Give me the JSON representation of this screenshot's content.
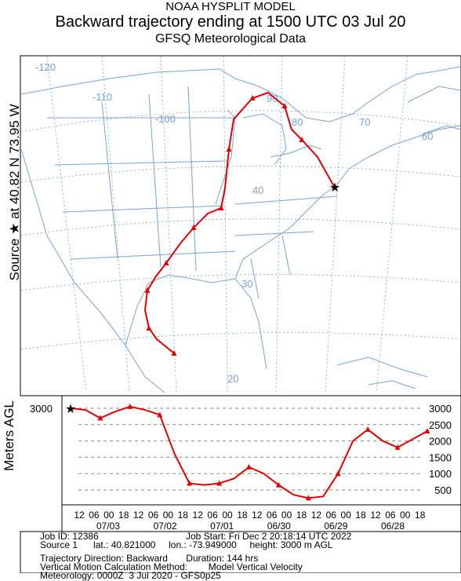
{
  "header": {
    "line1": "NOAA HYSPLIT MODEL",
    "line2": "Backward trajectory ending at 1500 UTC 03 Jul 20",
    "line3": "GFSQ Meteorological Data"
  },
  "side_labels": {
    "source": "Source ★  at    40.82 N    73.95 W",
    "height_axis": "Meters AGL"
  },
  "map": {
    "longitude_labels": [
      "-120",
      "-110",
      "-100",
      "90",
      "80",
      "70",
      "60"
    ],
    "latitude_labels": [
      "40",
      "30",
      "20"
    ],
    "colors": {
      "trajectory": "#e60000",
      "boundaries": "#7aa2d2",
      "grid": "#7aa2d2"
    }
  },
  "chart_data": {
    "type": "line",
    "ylabel": "Meters AGL",
    "ylim": [
      0,
      3500
    ],
    "height_ticks": [
      "500",
      "1000",
      "1500",
      "2000",
      "2500",
      "3000"
    ],
    "left_tick": "3000",
    "hour_ticks": [
      "12",
      "06",
      "00",
      "18",
      "12",
      "06",
      "00",
      "18",
      "12",
      "06",
      "00",
      "18",
      "12",
      "06",
      "00",
      "18",
      "12",
      "06",
      "00",
      "18",
      "12",
      "06",
      "00",
      "18"
    ],
    "date_labels": [
      "07/03",
      "07/02",
      "07/01",
      "06/30",
      "06/29",
      "06/28"
    ],
    "series": [
      {
        "hours_back": [
          0,
          6,
          12,
          18,
          24,
          30,
          36,
          42,
          48,
          54,
          60,
          66,
          72,
          78,
          84,
          90,
          96,
          102,
          108,
          114,
          120,
          126,
          132,
          138,
          144
        ],
        "height_m": [
          3000,
          2950,
          2700,
          2900,
          3050,
          2950,
          2800,
          1600,
          700,
          650,
          700,
          850,
          1200,
          1000,
          650,
          350,
          250,
          300,
          1000,
          2000,
          2350,
          2000,
          1800,
          2050,
          2300
        ]
      }
    ]
  },
  "footer": {
    "job_id": "Job ID: 12386",
    "job_start": "Job Start: Fri Dec  2 20:18:14 UTC 2022",
    "source": "Source 1      lat.: 40.821000     lon.: -73.949000     height: 3000 m AGL",
    "direction": "Trajectory Direction: Backward       Duration: 144 hrs",
    "vertical": "Vertical Motion Calculation Method:        Model Vertical Velocity",
    "meteo": "Meteorology: 0000Z  3 Jul 2020 - GFS0p25"
  }
}
